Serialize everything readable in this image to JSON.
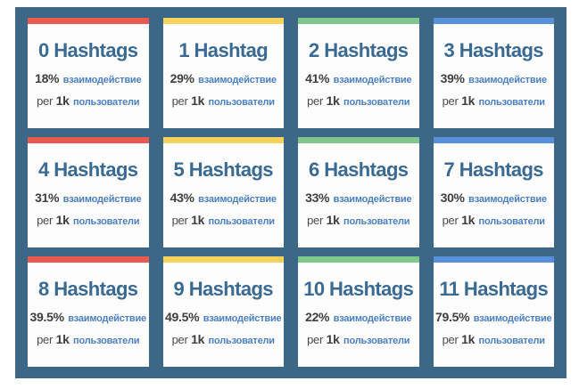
{
  "page": {
    "background": "#ffffff",
    "panel_background": "#3d6787"
  },
  "labels": {
    "interaction": "взаимодействие",
    "per": "per",
    "unit": "1k",
    "users": "пользователи"
  },
  "accent_colors": {
    "red": "#e85a50",
    "yellow": "#f7d35e",
    "green": "#7fc78d",
    "blue": "#578fd9"
  },
  "cards": [
    {
      "title": "0 Hashtags",
      "percent": "18%",
      "bar_color": "#e85a50"
    },
    {
      "title": "1 Hashtag",
      "percent": "29%",
      "bar_color": "#f7d35e"
    },
    {
      "title": "2 Hashtags",
      "percent": "41%",
      "bar_color": "#7fc78d"
    },
    {
      "title": "3 Hashtags",
      "percent": "39%",
      "bar_color": "#578fd9"
    },
    {
      "title": "4 Hashtags",
      "percent": "31%",
      "bar_color": "#e85a50"
    },
    {
      "title": "5 Hashtags",
      "percent": "43%",
      "bar_color": "#f7d35e"
    },
    {
      "title": "6 Hashtags",
      "percent": "33%",
      "bar_color": "#7fc78d"
    },
    {
      "title": "7 Hashtags",
      "percent": "30%",
      "bar_color": "#578fd9"
    },
    {
      "title": "8 Hashtags",
      "percent": "39.5%",
      "bar_color": "#e85a50"
    },
    {
      "title": "9 Hashtags",
      "percent": "49.5%",
      "bar_color": "#f7d35e"
    },
    {
      "title": "10 Hashtags",
      "percent": "22%",
      "bar_color": "#7fc78d"
    },
    {
      "title": "11 Hashtags",
      "percent": "79.5%",
      "bar_color": "#578fd9"
    }
  ],
  "chart_data": {
    "type": "table",
    "title": "",
    "categories": [
      "0 Hashtags",
      "1 Hashtag",
      "2 Hashtags",
      "3 Hashtags",
      "4 Hashtags",
      "5 Hashtags",
      "6 Hashtags",
      "7 Hashtags",
      "8 Hashtags",
      "9 Hashtags",
      "10 Hashtags",
      "11 Hashtags"
    ],
    "values": [
      18,
      29,
      41,
      39,
      31,
      43,
      33,
      30,
      39.5,
      49.5,
      22,
      79.5
    ],
    "value_label": "% взаимодействие per 1k пользователи",
    "layout": "grid-4x3"
  }
}
